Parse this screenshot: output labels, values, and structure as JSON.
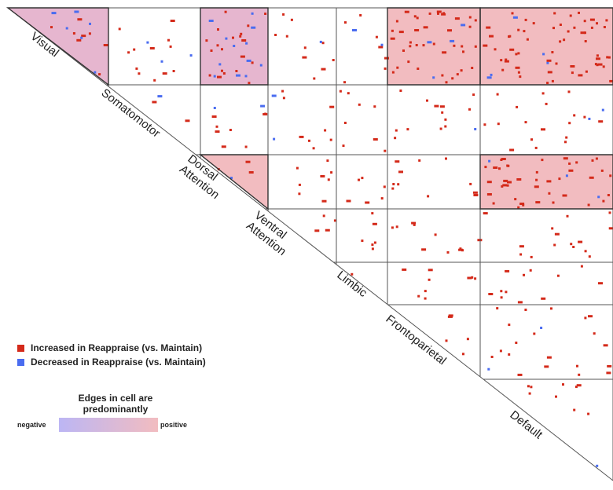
{
  "networks": [
    "Visual",
    "Somatomotor",
    "Dorsal Attention",
    "Ventral Attention",
    "Limbic",
    "Frontoparietal",
    "Default"
  ],
  "network_labels": [
    {
      "name": "Visual",
      "lines": [
        "Visual"
      ]
    },
    {
      "name": "Somatomotor",
      "lines": [
        "Somatomotor"
      ]
    },
    {
      "name": "Dorsal Attention",
      "lines": [
        "Dorsal",
        "Attention"
      ]
    },
    {
      "name": "Ventral Attention",
      "lines": [
        "Ventral",
        "Attention"
      ]
    },
    {
      "name": "Limbic",
      "lines": [
        "Limbic"
      ]
    },
    {
      "name": "Frontoparietal",
      "lines": [
        "Frontoparietal"
      ]
    },
    {
      "name": "Default",
      "lines": [
        "Default"
      ]
    }
  ],
  "legend": {
    "increased": "Increased in Reappraise (vs. Maintain)",
    "decreased": "Decreased in Reappraise (vs. Maintain)"
  },
  "gradient_legend": {
    "title": "Edges in cell are predominantly",
    "negative": "negative",
    "positive": "positive"
  },
  "colors": {
    "increased": "#d42a1a",
    "decreased": "#4a6cf0",
    "cell_positive": "#f2bcc0",
    "cell_negative": "#c8b8ec",
    "cell_mixed": "#e6b6cf",
    "grid": "#555555",
    "text": "#222222"
  },
  "shaded_cells": [
    {
      "row": "Visual",
      "col": "Visual",
      "tone": "mixed"
    },
    {
      "row": "Visual",
      "col": "Dorsal Attention",
      "tone": "mixed"
    },
    {
      "row": "Visual",
      "col": "Frontoparietal",
      "tone": "positive"
    },
    {
      "row": "Visual",
      "col": "Default",
      "tone": "positive"
    },
    {
      "row": "Dorsal Attention",
      "col": "Dorsal Attention",
      "tone": "positive"
    },
    {
      "row": "Dorsal Attention",
      "col": "Default",
      "tone": "positive"
    }
  ]
}
